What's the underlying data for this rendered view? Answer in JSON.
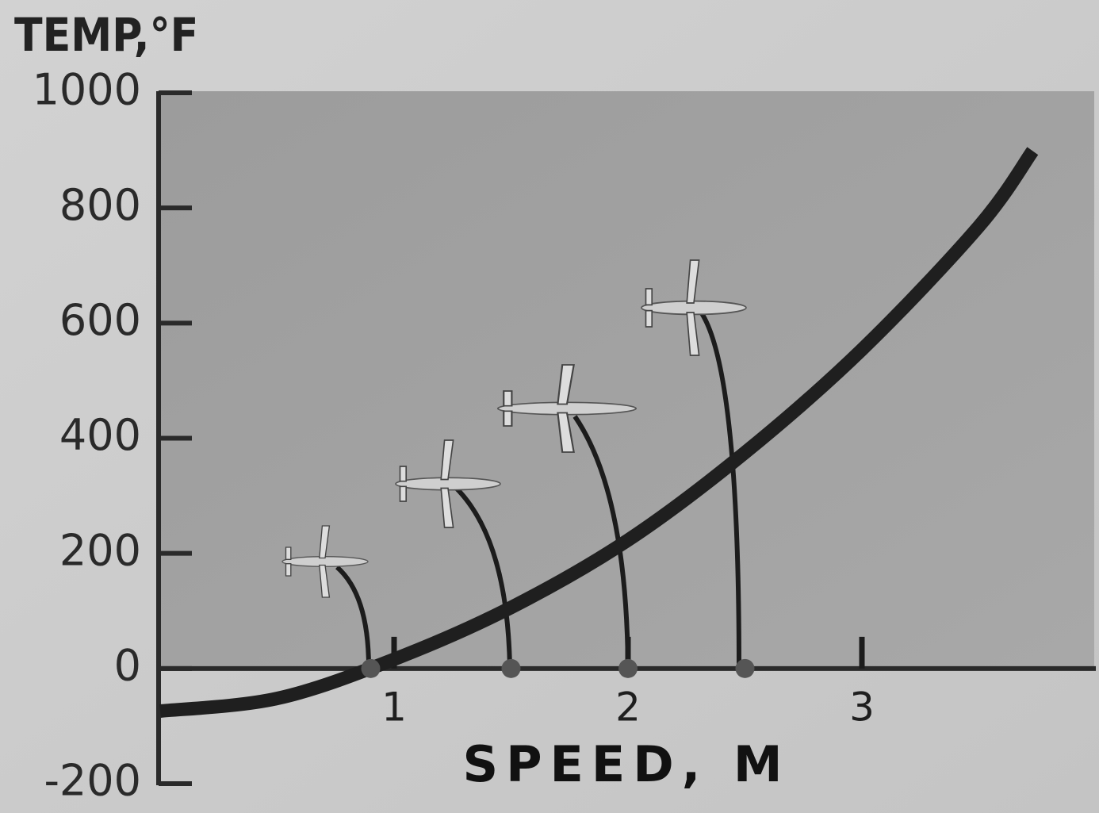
{
  "chart_data": {
    "type": "line",
    "title": "TEMP,°F",
    "x_label": "SPEED, M",
    "x": [
      0,
      0.5,
      1,
      1.5,
      2,
      2.5,
      3,
      3.5,
      3.73
    ],
    "values": [
      -74,
      -52,
      16,
      106,
      223,
      375,
      554,
      768,
      899
    ],
    "color": "#1f1f1f",
    "markers": {
      "x": [
        0.9,
        1.5,
        2.0,
        2.5
      ],
      "values": [
        0,
        0,
        0,
        0
      ],
      "color": "#555555"
    },
    "xlim": [
      0,
      4
    ],
    "xticks": [
      1,
      2,
      3
    ],
    "ylim": [
      -200,
      1000
    ],
    "yticks": [
      -200,
      0,
      200,
      400,
      600,
      800,
      1000
    ]
  }
}
